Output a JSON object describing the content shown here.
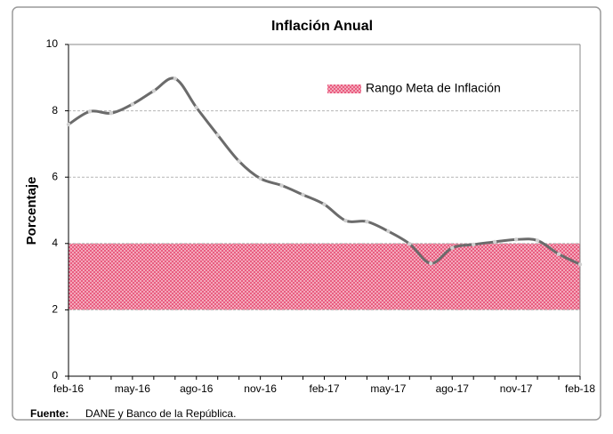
{
  "chart_data": {
    "type": "line",
    "title": "Inflación Anual",
    "y_label": "Porcentaje",
    "categories": [
      "feb-16",
      null,
      null,
      "may-16",
      null,
      null,
      "ago-16",
      null,
      null,
      "nov-16",
      null,
      null,
      "feb-17",
      null,
      null,
      "may-17",
      null,
      null,
      "ago-17",
      null,
      null,
      "nov-17",
      null,
      null,
      "feb-18"
    ],
    "series": [
      {
        "name": "Inflación Anual",
        "color": "#6b6b6b",
        "values": [
          7.59,
          7.98,
          7.93,
          8.2,
          8.6,
          8.97,
          8.1,
          7.27,
          6.48,
          5.96,
          5.75,
          5.47,
          5.18,
          4.69,
          4.66,
          4.37,
          3.99,
          3.4,
          3.87,
          3.97,
          4.05,
          4.12,
          4.09,
          3.68,
          3.37
        ]
      }
    ],
    "target_band": {
      "name": "Rango Meta de Inflación",
      "range": [
        2,
        4
      ],
      "color": "#e8557a"
    },
    "ylim": [
      0,
      10
    ],
    "yticks": [
      0,
      2,
      4,
      6,
      8,
      10
    ],
    "grid": true,
    "source": {
      "label": "Fuente:",
      "text": "DANE y Banco de la República."
    }
  }
}
